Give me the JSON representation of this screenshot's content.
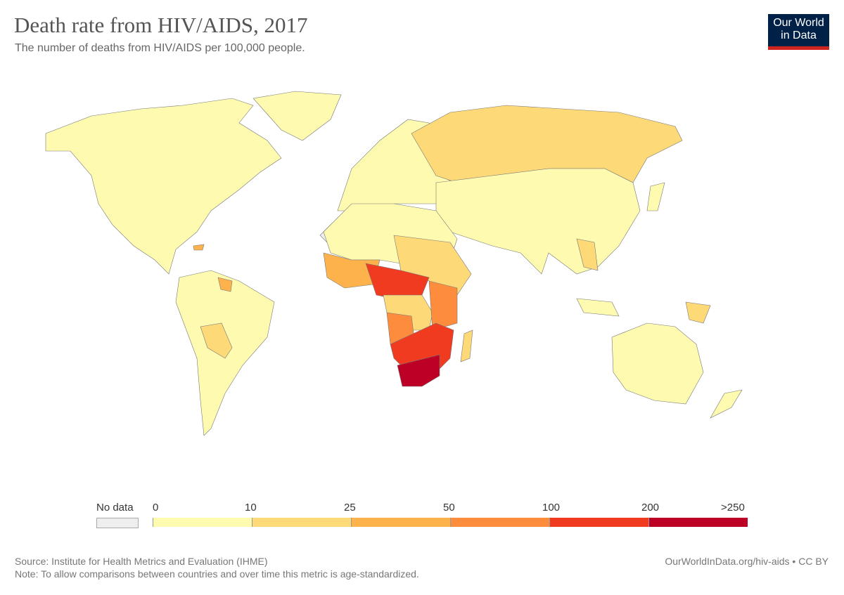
{
  "header": {
    "title": "Death rate from HIV/AIDS, 2017",
    "subtitle": "The number of deaths from HIV/AIDS per 100,000 people.",
    "logo": "Our World in Data"
  },
  "legend": {
    "no_data_label": "No data",
    "no_data_color": "#eeeeee",
    "ticks": [
      "0",
      "10",
      "25",
      "50",
      "100",
      "200",
      ">250"
    ],
    "bins": [
      {
        "from": 0,
        "to": 10,
        "color": "#fefbb0"
      },
      {
        "from": 10,
        "to": 25,
        "color": "#fed978"
      },
      {
        "from": 25,
        "to": 50,
        "color": "#feb24c"
      },
      {
        "from": 50,
        "to": 100,
        "color": "#fd8d3c"
      },
      {
        "from": 100,
        "to": 200,
        "color": "#f03b20"
      },
      {
        "from": 200,
        "to": 250,
        "color": "#bd0026"
      }
    ]
  },
  "footer": {
    "source": "Source: Institute for Health Metrics and Evaluation (IHME)",
    "note": "Note: To allow comparisons between countries and over time this metric is age-standardized.",
    "link": "OurWorldInData.org/hiv-aids • CC BY"
  }
}
